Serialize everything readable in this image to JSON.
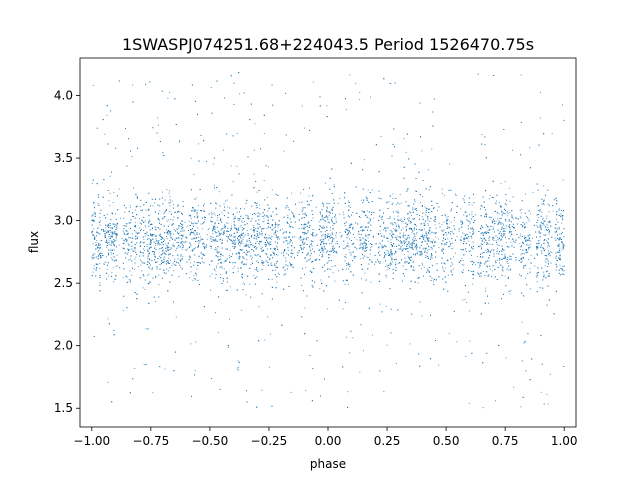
{
  "chart_data": {
    "type": "scatter",
    "title": "1SWASPJ074251.68+224043.5 Period 1526470.75s",
    "xlabel": "phase",
    "ylabel": "flux",
    "xlim": [
      -1.05,
      1.05
    ],
    "ylim": [
      1.35,
      4.3
    ],
    "xticks": [
      -1.0,
      -0.75,
      -0.5,
      -0.25,
      0.0,
      0.25,
      0.5,
      0.75,
      1.0
    ],
    "xtick_labels": [
      "−1.00",
      "−0.75",
      "−0.50",
      "−0.25",
      "0.00",
      "0.25",
      "0.50",
      "0.75",
      "1.00"
    ],
    "yticks": [
      1.5,
      2.0,
      2.5,
      3.0,
      3.5,
      4.0
    ],
    "ytick_labels": [
      "1.5",
      "2.0",
      "2.5",
      "3.0",
      "3.5",
      "4.0"
    ],
    "grid": false,
    "legend": "none",
    "marker_color": "#1f77b4",
    "series": [
      {
        "phase_range": [
          -1.0,
          1.0
        ],
        "flux_center": 2.85,
        "flux_core_range": [
          2.45,
          3.2
        ],
        "flux_outlier_range": [
          1.5,
          4.2
        ],
        "gap_phases": [
          -0.95,
          -0.88,
          -0.6,
          -0.51,
          -0.2,
          -0.13,
          -0.05,
          0.05,
          0.12,
          0.2,
          0.47,
          0.55,
          0.63,
          0.8,
          0.87,
          0.95
        ]
      }
    ]
  }
}
